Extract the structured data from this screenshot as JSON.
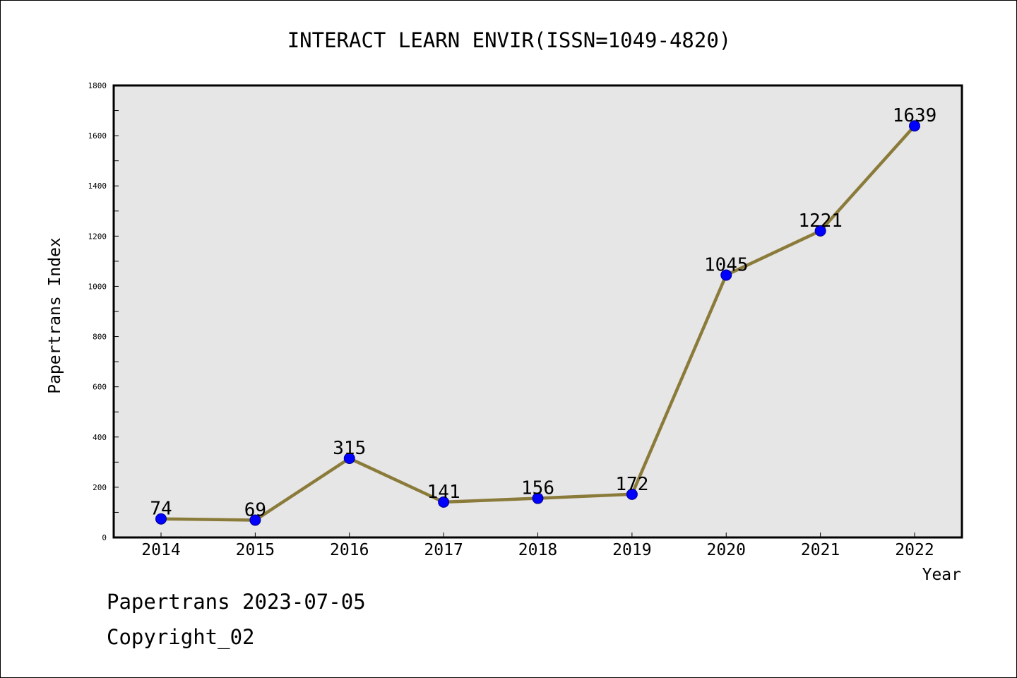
{
  "chart_data": {
    "type": "line",
    "title": "INTERACT LEARN ENVIR(ISSN=1049-4820)",
    "xlabel": "Year",
    "ylabel": "Papertrans Index",
    "categories": [
      "2014",
      "2015",
      "2016",
      "2017",
      "2018",
      "2019",
      "2020",
      "2021",
      "2022"
    ],
    "series": [
      {
        "values": [
          74,
          69,
          315,
          141,
          156,
          172,
          1045,
          1221,
          1639
        ]
      }
    ],
    "ylim": [
      0,
      1800
    ],
    "yticks": [
      0,
      200,
      400,
      600,
      800,
      1000,
      1200,
      1400,
      1600,
      1800
    ],
    "y_minor_step": 100,
    "grid": false,
    "legend": "none",
    "data_labels": true,
    "colors": {
      "line": "#8B7B3A",
      "marker_fill": "#0000FF",
      "marker_edge": "#00008B",
      "plot_background": "#E6E6E6",
      "axes_edge": "#000000"
    }
  },
  "footer": {
    "date_text": "Papertrans 2023-07-05",
    "copyright_text": "Copyright_02"
  }
}
